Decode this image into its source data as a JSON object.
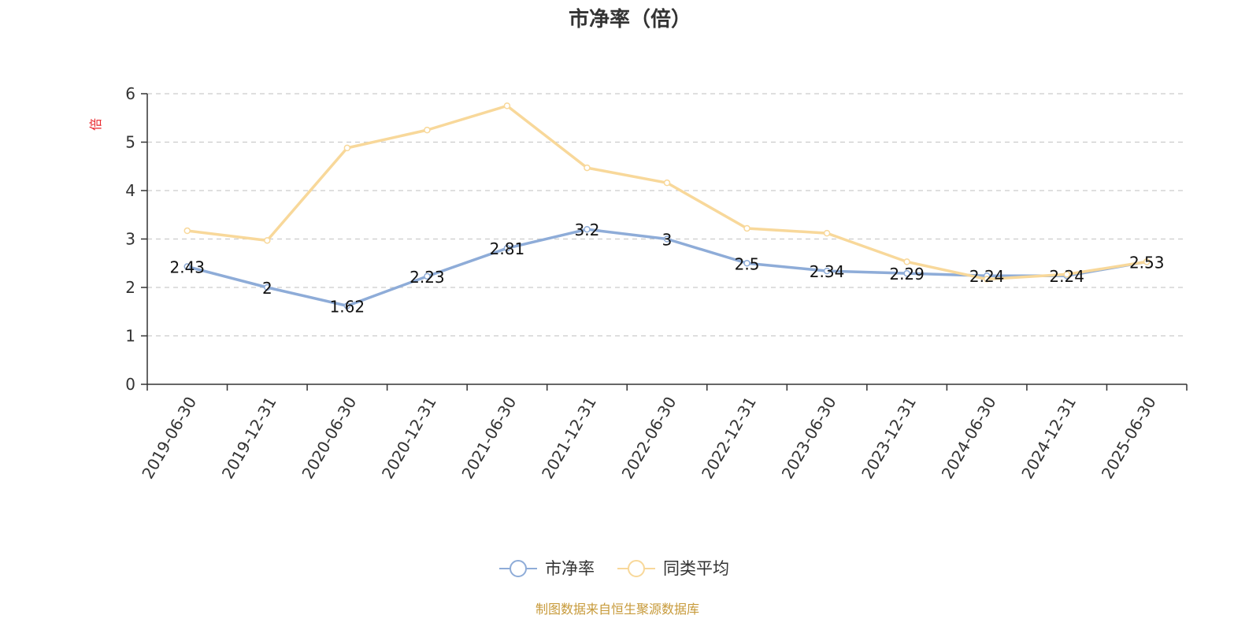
{
  "chart_data": {
    "type": "line",
    "title": "市净率（倍）",
    "ylabel": "倍",
    "ylim": [
      0,
      6
    ],
    "yticks": [
      0,
      1,
      2,
      3,
      4,
      5,
      6
    ],
    "grid": true,
    "legend_position": "bottom-center",
    "categories": [
      "2019-06-30",
      "2019-12-31",
      "2020-06-30",
      "2020-12-31",
      "2021-06-30",
      "2021-12-31",
      "2022-06-30",
      "2022-12-31",
      "2023-06-30",
      "2023-12-31",
      "2024-06-30",
      "2024-12-31",
      "2025-06-30"
    ],
    "series": [
      {
        "name": "市净率",
        "color": "#8eacd8",
        "values": [
          2.43,
          2,
          1.62,
          2.23,
          2.81,
          3.2,
          3,
          2.5,
          2.34,
          2.29,
          2.24,
          2.24,
          2.53
        ],
        "data_labels": [
          "2.43",
          "2",
          "1.62",
          "2.23",
          "2.81",
          "3.2",
          "3",
          "2.5",
          "2.34",
          "2.29",
          "2.24",
          "2.24",
          "2.53"
        ]
      },
      {
        "name": "同类平均",
        "color": "#f8d89a",
        "values": [
          3.17,
          2.97,
          4.88,
          5.25,
          5.75,
          4.47,
          4.16,
          3.22,
          3.12,
          2.53,
          2.17,
          2.27,
          2.53
        ]
      }
    ]
  },
  "colors": {
    "ylabel": "#e8262b",
    "source": "#c79a3a",
    "axis": "#333333"
  },
  "source_text": "制图数据来自恒生聚源数据库"
}
